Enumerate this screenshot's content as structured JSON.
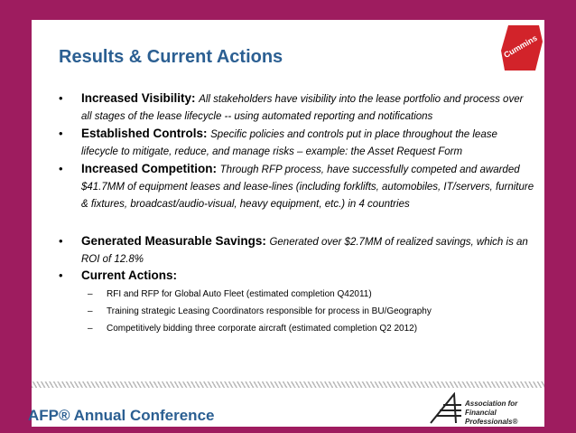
{
  "header": {
    "title": "Results & Current Actions"
  },
  "logo": {
    "text": "Cummins"
  },
  "bullets": [
    {
      "label": "Increased Visibility:",
      "text": "All stakeholders have visibility into the lease portfolio and process over all stages of the lease lifecycle -- using automated reporting and notifications"
    },
    {
      "label": "Established Controls:",
      "text": "Specific policies and controls put in place throughout the lease lifecycle to mitigate, reduce, and manage risks – example: the Asset Request Form"
    },
    {
      "label": "Increased Competition:",
      "text": "Through RFP process, have successfully competed and awarded $41.7MM of equipment leases and lease-lines (including forklifts, automobiles, IT/servers, furniture & fixtures, broadcast/audio-visual, heavy equipment, etc.) in 4 countries"
    },
    {
      "label": "Generated Measurable Savings:",
      "text": "Generated over $2.7MM of realized savings, which is an ROI of 12.8%"
    },
    {
      "label": "Current Actions:",
      "text": ""
    }
  ],
  "sub_items": [
    "RFI and RFP for Global Auto Fleet (estimated completion Q42011)",
    "Training strategic Leasing Coordinators responsible for process in BU/Geography",
    "Competitively bidding three corporate aircraft (estimated completion Q2 2012)"
  ],
  "footer": {
    "title": "AFP® Annual Conference",
    "org_line1": "Association for",
    "org_line2": "Financial Professionals®"
  }
}
